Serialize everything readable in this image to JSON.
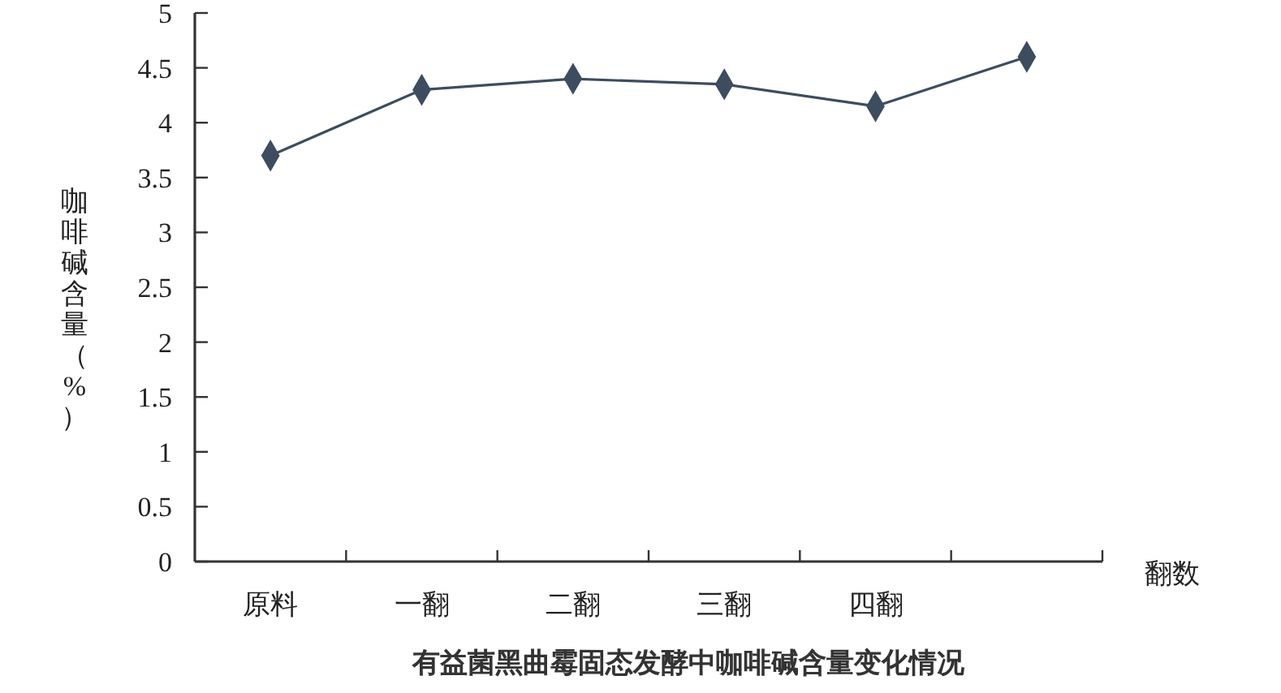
{
  "chart_data": {
    "type": "line",
    "title": "有益菌黑曲霉固态发酵中咖啡碱含量变化情况",
    "xlabel": "翻数",
    "ylabel": "咖啡碱含量（%）",
    "categories": [
      "原料",
      "一翻",
      "二翻",
      "三翻",
      "四翻",
      null
    ],
    "series": [
      {
        "color": "#3d4d5f",
        "values": [
          3.7,
          4.3,
          4.4,
          4.35,
          4.15,
          4.6
        ]
      }
    ],
    "ylim": [
      0,
      5
    ],
    "yticks": [
      0,
      0.5,
      1,
      1.5,
      2,
      2.5,
      3,
      3.5,
      4,
      4.5,
      5
    ],
    "marker": "diamond",
    "line_style": "solid"
  }
}
